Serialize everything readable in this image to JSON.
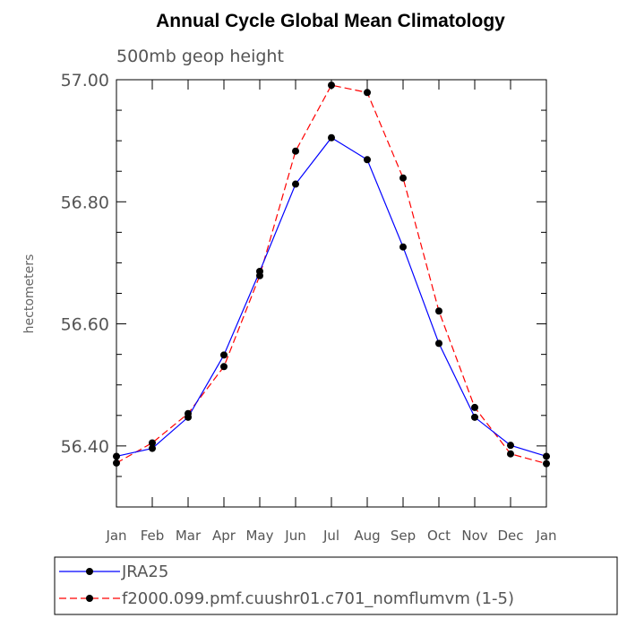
{
  "chart_data": {
    "type": "line",
    "title": "Annual Cycle Global Mean Climatology",
    "subtitle": "500mb geop height",
    "ylabel": "hectometers",
    "xlabel": "",
    "categories": [
      "Jan",
      "Feb",
      "Mar",
      "Apr",
      "May",
      "Jun",
      "Jul",
      "Aug",
      "Sep",
      "Oct",
      "Nov",
      "Dec",
      "Jan"
    ],
    "ylim": [
      56.3,
      57.0
    ],
    "yticks": [
      56.4,
      56.6,
      56.8,
      57.0
    ],
    "ytick_labels": [
      "56.40",
      "56.60",
      "56.80",
      "57.00"
    ],
    "grid": false,
    "legend_position": "bottom-outside",
    "series": [
      {
        "name": "JRA25",
        "color": "#0000ff",
        "dash": "solid",
        "marker": "filled-circle",
        "values": [
          56.383,
          56.396,
          56.447,
          56.549,
          56.686,
          56.829,
          56.905,
          56.869,
          56.726,
          56.568,
          56.447,
          56.401,
          56.383
        ]
      },
      {
        "name": "f2000.099.pmf.cuushr01.c701_nomflumvm (1-5)",
        "color": "#ff0000",
        "dash": "dashed",
        "marker": "filled-circle",
        "values": [
          56.372,
          56.405,
          56.453,
          56.53,
          56.679,
          56.883,
          56.991,
          56.979,
          56.839,
          56.621,
          56.463,
          56.387,
          56.371
        ]
      }
    ]
  }
}
